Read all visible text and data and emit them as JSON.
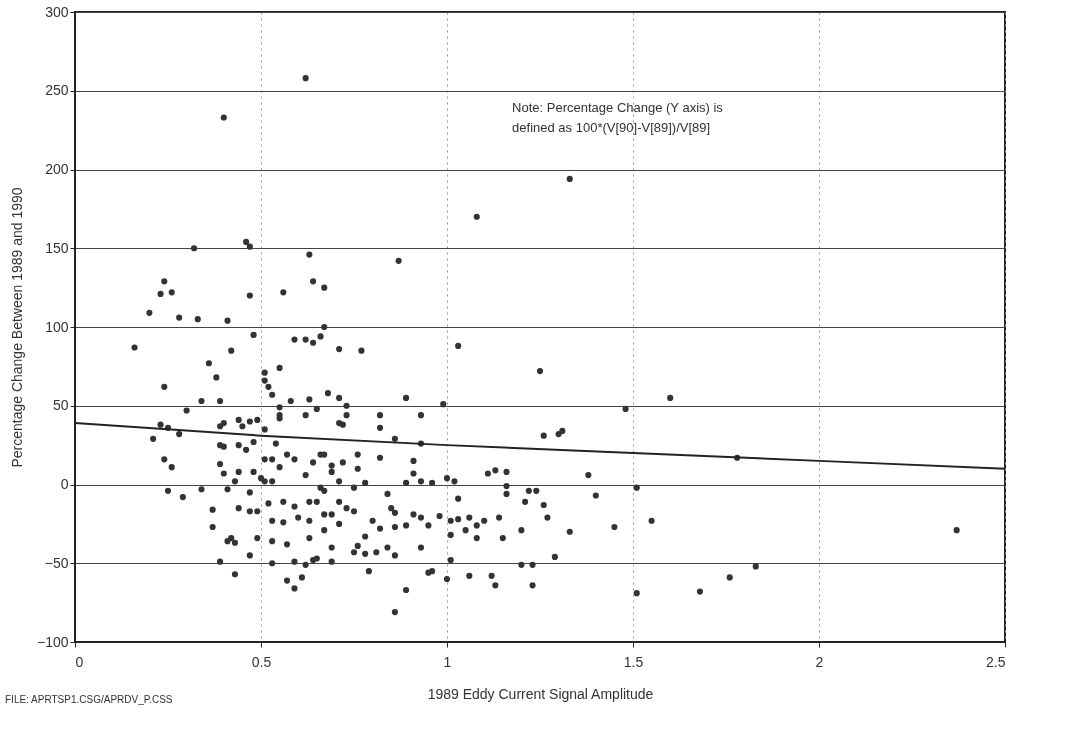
{
  "chart_data": {
    "type": "scatter",
    "xlabel": "1989 Eddy Current Signal Amplitude",
    "ylabel": "Percentage Change Between 1989 and 1990",
    "annotations": [
      "Note: Percentage Change (Y axis) is",
      "defined as 100*(V[90]-V[89])/V[89]",
      "FILE: APRTSP1.CSG/APRDV_P.CSS"
    ],
    "xlim": [
      0,
      2.5
    ],
    "xticks": [
      0,
      0.5,
      1,
      1.5,
      2,
      2.5
    ],
    "ylim": [
      -100,
      300
    ],
    "yticks": [
      -100,
      -50,
      0,
      50,
      100,
      150,
      200,
      250,
      300
    ],
    "grid": true,
    "marker": "circle",
    "series": [
      {
        "color": "#333333",
        "x": [
          0.4,
          0.62,
          1.33,
          1.08,
          0.32,
          0.46,
          0.47,
          0.63,
          0.24,
          0.23,
          0.26,
          0.47,
          0.56,
          0.64,
          0.67,
          0.2,
          0.28,
          0.33,
          0.41,
          0.48,
          0.59,
          0.62,
          0.64,
          0.67,
          0.66,
          0.16,
          0.42,
          0.36,
          0.38,
          0.24,
          0.55,
          0.51,
          0.51,
          0.52,
          0.53,
          0.34,
          0.39,
          0.3,
          0.55,
          0.55,
          0.58,
          0.62,
          0.63,
          0.65,
          0.23,
          0.25,
          0.28,
          0.21,
          0.39,
          0.4,
          0.44,
          0.45,
          0.47,
          0.49,
          0.51,
          0.55,
          0.39,
          0.4,
          0.44,
          0.46,
          0.48,
          0.54,
          0.24,
          0.26,
          0.39,
          0.4,
          0.44,
          0.43,
          0.48,
          0.5,
          0.51,
          0.53,
          0.51,
          0.53,
          0.57,
          0.59,
          0.64,
          0.62,
          0.67,
          0.55,
          0.25,
          0.29,
          0.34,
          0.41,
          0.47,
          0.44,
          0.47,
          0.49,
          0.52,
          0.56,
          0.59,
          0.6,
          0.63,
          0.65,
          0.37,
          0.37,
          0.53,
          0.56,
          0.63,
          0.41,
          0.42,
          0.43,
          0.49,
          0.53,
          0.57,
          0.63,
          0.47,
          0.39,
          0.53,
          0.59,
          0.62,
          0.64,
          0.43,
          0.57,
          0.59,
          0.61,
          0.87,
          1.03,
          1.25,
          0.77,
          0.71,
          0.68,
          0.71,
          0.73,
          0.73,
          0.72,
          0.89,
          0.99,
          0.93,
          0.82,
          0.82,
          0.71,
          0.66,
          0.69,
          0.69,
          0.72,
          0.76,
          0.76,
          0.82,
          0.91,
          0.86,
          0.93,
          0.66,
          0.67,
          0.71,
          0.75,
          0.78,
          0.89,
          0.91,
          0.93,
          0.96,
          1.0,
          1.02,
          1.03,
          1.11,
          1.13,
          1.16,
          1.16,
          1.16,
          1.22,
          1.24,
          1.21,
          1.26,
          1.27,
          1.26,
          1.3,
          1.31,
          0.84,
          0.71,
          0.73,
          0.75,
          0.85,
          0.86,
          0.67,
          0.69,
          0.71,
          0.8,
          0.82,
          0.86,
          0.89,
          0.91,
          0.93,
          0.95,
          0.98,
          1.01,
          1.03,
          1.06,
          1.08,
          1.1,
          1.14,
          1.01,
          1.05,
          1.08,
          1.15,
          1.2,
          1.33,
          0.67,
          0.78,
          0.69,
          0.75,
          0.76,
          0.78,
          0.81,
          0.84,
          0.86,
          0.93,
          0.65,
          0.69,
          1.01,
          1.2,
          1.23,
          1.29,
          0.79,
          0.95,
          0.96,
          1.0,
          1.06,
          1.12,
          1.13,
          1.23,
          0.89,
          0.86,
          1.6,
          1.48,
          1.78,
          1.38,
          1.51,
          1.4,
          1.45,
          1.55,
          2.37,
          1.83,
          1.76,
          1.51,
          1.68
        ],
        "values": [
          233,
          258,
          194,
          170,
          150,
          154,
          151,
          146,
          129,
          121,
          122,
          120,
          122,
          129,
          125,
          109,
          106,
          105,
          104,
          95,
          92,
          92,
          90,
          100,
          94,
          87,
          85,
          77,
          68,
          62,
          74,
          71,
          66,
          62,
          57,
          53,
          53,
          47,
          49,
          44,
          53,
          44,
          54,
          48,
          38,
          36,
          32,
          29,
          37,
          39,
          41,
          37,
          40,
          41,
          35,
          42,
          25,
          24,
          25,
          22,
          27,
          26,
          16,
          11,
          13,
          7,
          8,
          2,
          8,
          4,
          2,
          2,
          16,
          16,
          19,
          16,
          14,
          6,
          19,
          11,
          -4,
          -8,
          -3,
          -3,
          -5,
          -15,
          -17,
          -17,
          -12,
          -11,
          -14,
          -21,
          -11,
          -11,
          -16,
          -27,
          -23,
          -24,
          -23,
          -36,
          -34,
          -37,
          -34,
          -36,
          -38,
          -34,
          -45,
          -49,
          -50,
          -49,
          -51,
          -48,
          -57,
          -61,
          -66,
          -59,
          142,
          88,
          72,
          85,
          86,
          58,
          55,
          50,
          44,
          38,
          55,
          51,
          44,
          44,
          36,
          39,
          19,
          12,
          8,
          14,
          19,
          10,
          17,
          15,
          29,
          26,
          -2,
          -4,
          2,
          -2,
          1,
          1,
          7,
          2,
          1,
          4,
          2,
          -9,
          7,
          9,
          8,
          -1,
          -6,
          -4,
          -4,
          -11,
          -13,
          -21,
          31,
          32,
          34,
          -6,
          -11,
          -15,
          -17,
          -15,
          -18,
          -19,
          -19,
          -25,
          -23,
          -28,
          -27,
          -26,
          -19,
          -21,
          -26,
          -20,
          -23,
          -22,
          -21,
          -26,
          -23,
          -21,
          -32,
          -29,
          -34,
          -34,
          -29,
          -30,
          -29,
          -33,
          -40,
          -43,
          -39,
          -44,
          -43,
          -40,
          -45,
          -40,
          -47,
          -49,
          -48,
          -51,
          -51,
          -46,
          -55,
          -56,
          -55,
          -60,
          -58,
          -58,
          -64,
          -64,
          -67,
          -81,
          55,
          48,
          17,
          6,
          -2,
          -7,
          -27,
          -23,
          -29,
          -52,
          -59,
          -69,
          -68
        ]
      },
      {
        "type": "line",
        "color": "#222222",
        "marker": "none",
        "x": [
          0,
          0.5,
          1,
          1.5,
          2,
          2.5
        ],
        "values": [
          39,
          31,
          25,
          20,
          15,
          10
        ]
      }
    ]
  }
}
